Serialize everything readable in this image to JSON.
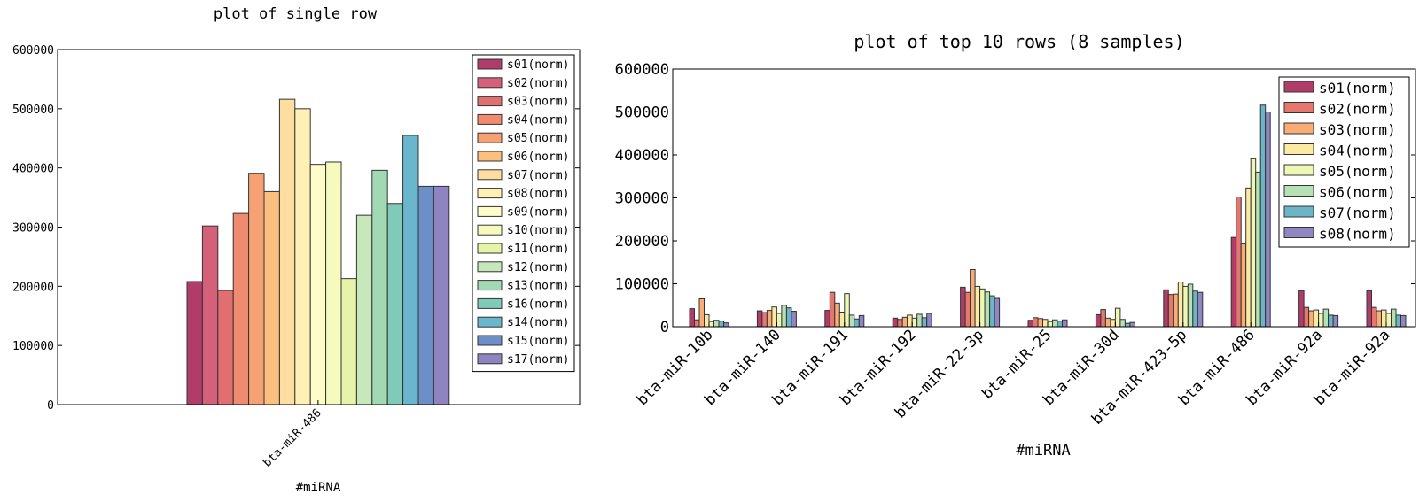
{
  "chart_data": [
    {
      "type": "bar",
      "title": "plot of single row",
      "xlabel": "#miRNA",
      "ylabel": "",
      "ylim": [
        0,
        600000
      ],
      "yticks": [
        0,
        100000,
        200000,
        300000,
        400000,
        500000,
        600000
      ],
      "categories": [
        "bta-miR-486"
      ],
      "legend_position": "top-right",
      "grid": false,
      "series": [
        {
          "name": "s01(norm)",
          "color": "#b03c6a",
          "values": [
            208000
          ]
        },
        {
          "name": "s02(norm)",
          "color": "#d4607a",
          "values": [
            302000
          ]
        },
        {
          "name": "s03(norm)",
          "color": "#e26f6f",
          "values": [
            193000
          ]
        },
        {
          "name": "s04(norm)",
          "color": "#f08b6f",
          "values": [
            323000
          ]
        },
        {
          "name": "s05(norm)",
          "color": "#f6a173",
          "values": [
            391000
          ]
        },
        {
          "name": "s06(norm)",
          "color": "#fbbf80",
          "values": [
            360000
          ]
        },
        {
          "name": "s07(norm)",
          "color": "#fddea0",
          "values": [
            516000
          ]
        },
        {
          "name": "s08(norm)",
          "color": "#fff1b3",
          "values": [
            500000
          ]
        },
        {
          "name": "s09(norm)",
          "color": "#fefcc8",
          "values": [
            406000
          ]
        },
        {
          "name": "s10(norm)",
          "color": "#f6fbbd",
          "values": [
            410000
          ]
        },
        {
          "name": "s11(norm)",
          "color": "#e6f4aa",
          "values": [
            213000
          ]
        },
        {
          "name": "s12(norm)",
          "color": "#c6e8ba",
          "values": [
            320000
          ]
        },
        {
          "name": "s13(norm)",
          "color": "#a1d9b4",
          "values": [
            396000
          ]
        },
        {
          "name": "s16(norm)",
          "color": "#80cbb7",
          "values": [
            340000
          ]
        },
        {
          "name": "s14(norm)",
          "color": "#6ab6cd",
          "values": [
            455000
          ]
        },
        {
          "name": "s15(norm)",
          "color": "#6d8fc8",
          "values": [
            369000
          ]
        },
        {
          "name": "s17(norm)",
          "color": "#8e84c2",
          "values": [
            369000
          ]
        }
      ]
    },
    {
      "type": "bar",
      "title": "plot of top 10 rows (8 samples)",
      "xlabel": "#miRNA",
      "ylabel": "",
      "ylim": [
        0,
        600000
      ],
      "yticks": [
        0,
        100000,
        200000,
        300000,
        400000,
        500000,
        600000
      ],
      "categories": [
        "bta-miR-10b",
        "bta-miR-140",
        "bta-miR-191",
        "bta-miR-192",
        "bta-miR-22-3p",
        "bta-miR-25",
        "bta-miR-30d",
        "bta-miR-423-5p",
        "bta-miR-486",
        "bta-miR-92a",
        "bta-miR-92a"
      ],
      "legend_position": "top-right",
      "grid": false,
      "series": [
        {
          "name": "s01(norm)",
          "color": "#b03c6a",
          "values": [
            42000,
            37000,
            38000,
            20000,
            92000,
            15000,
            28000,
            86000,
            208000,
            84000,
            84000
          ]
        },
        {
          "name": "s02(norm)",
          "color": "#e5776e",
          "values": [
            16000,
            33000,
            80000,
            17000,
            80000,
            21000,
            40000,
            75000,
            302000,
            45000,
            45000
          ]
        },
        {
          "name": "s03(norm)",
          "color": "#f8ad77",
          "values": [
            65000,
            38000,
            55000,
            22000,
            133000,
            19000,
            20000,
            76000,
            193000,
            37000,
            37000
          ]
        },
        {
          "name": "s04(norm)",
          "color": "#fdeaa2",
          "values": [
            28000,
            46000,
            34000,
            27000,
            94000,
            17000,
            17000,
            104000,
            323000,
            39000,
            39000
          ]
        },
        {
          "name": "s05(norm)",
          "color": "#eff8b3",
          "values": [
            12000,
            31000,
            77000,
            20000,
            88000,
            12000,
            43000,
            94000,
            391000,
            31000,
            31000
          ]
        },
        {
          "name": "s06(norm)",
          "color": "#b5e1b4",
          "values": [
            15000,
            50000,
            27000,
            29000,
            81000,
            16000,
            17000,
            99000,
            360000,
            41000,
            41000
          ]
        },
        {
          "name": "s07(norm)",
          "color": "#6bb5c7",
          "values": [
            13000,
            44000,
            18000,
            21000,
            72000,
            13000,
            8000,
            83000,
            516000,
            27000,
            27000
          ]
        },
        {
          "name": "s08(norm)",
          "color": "#8f86c2",
          "values": [
            9000,
            36000,
            26000,
            31000,
            66000,
            16000,
            10000,
            80000,
            500000,
            26000,
            26000
          ]
        }
      ]
    }
  ]
}
